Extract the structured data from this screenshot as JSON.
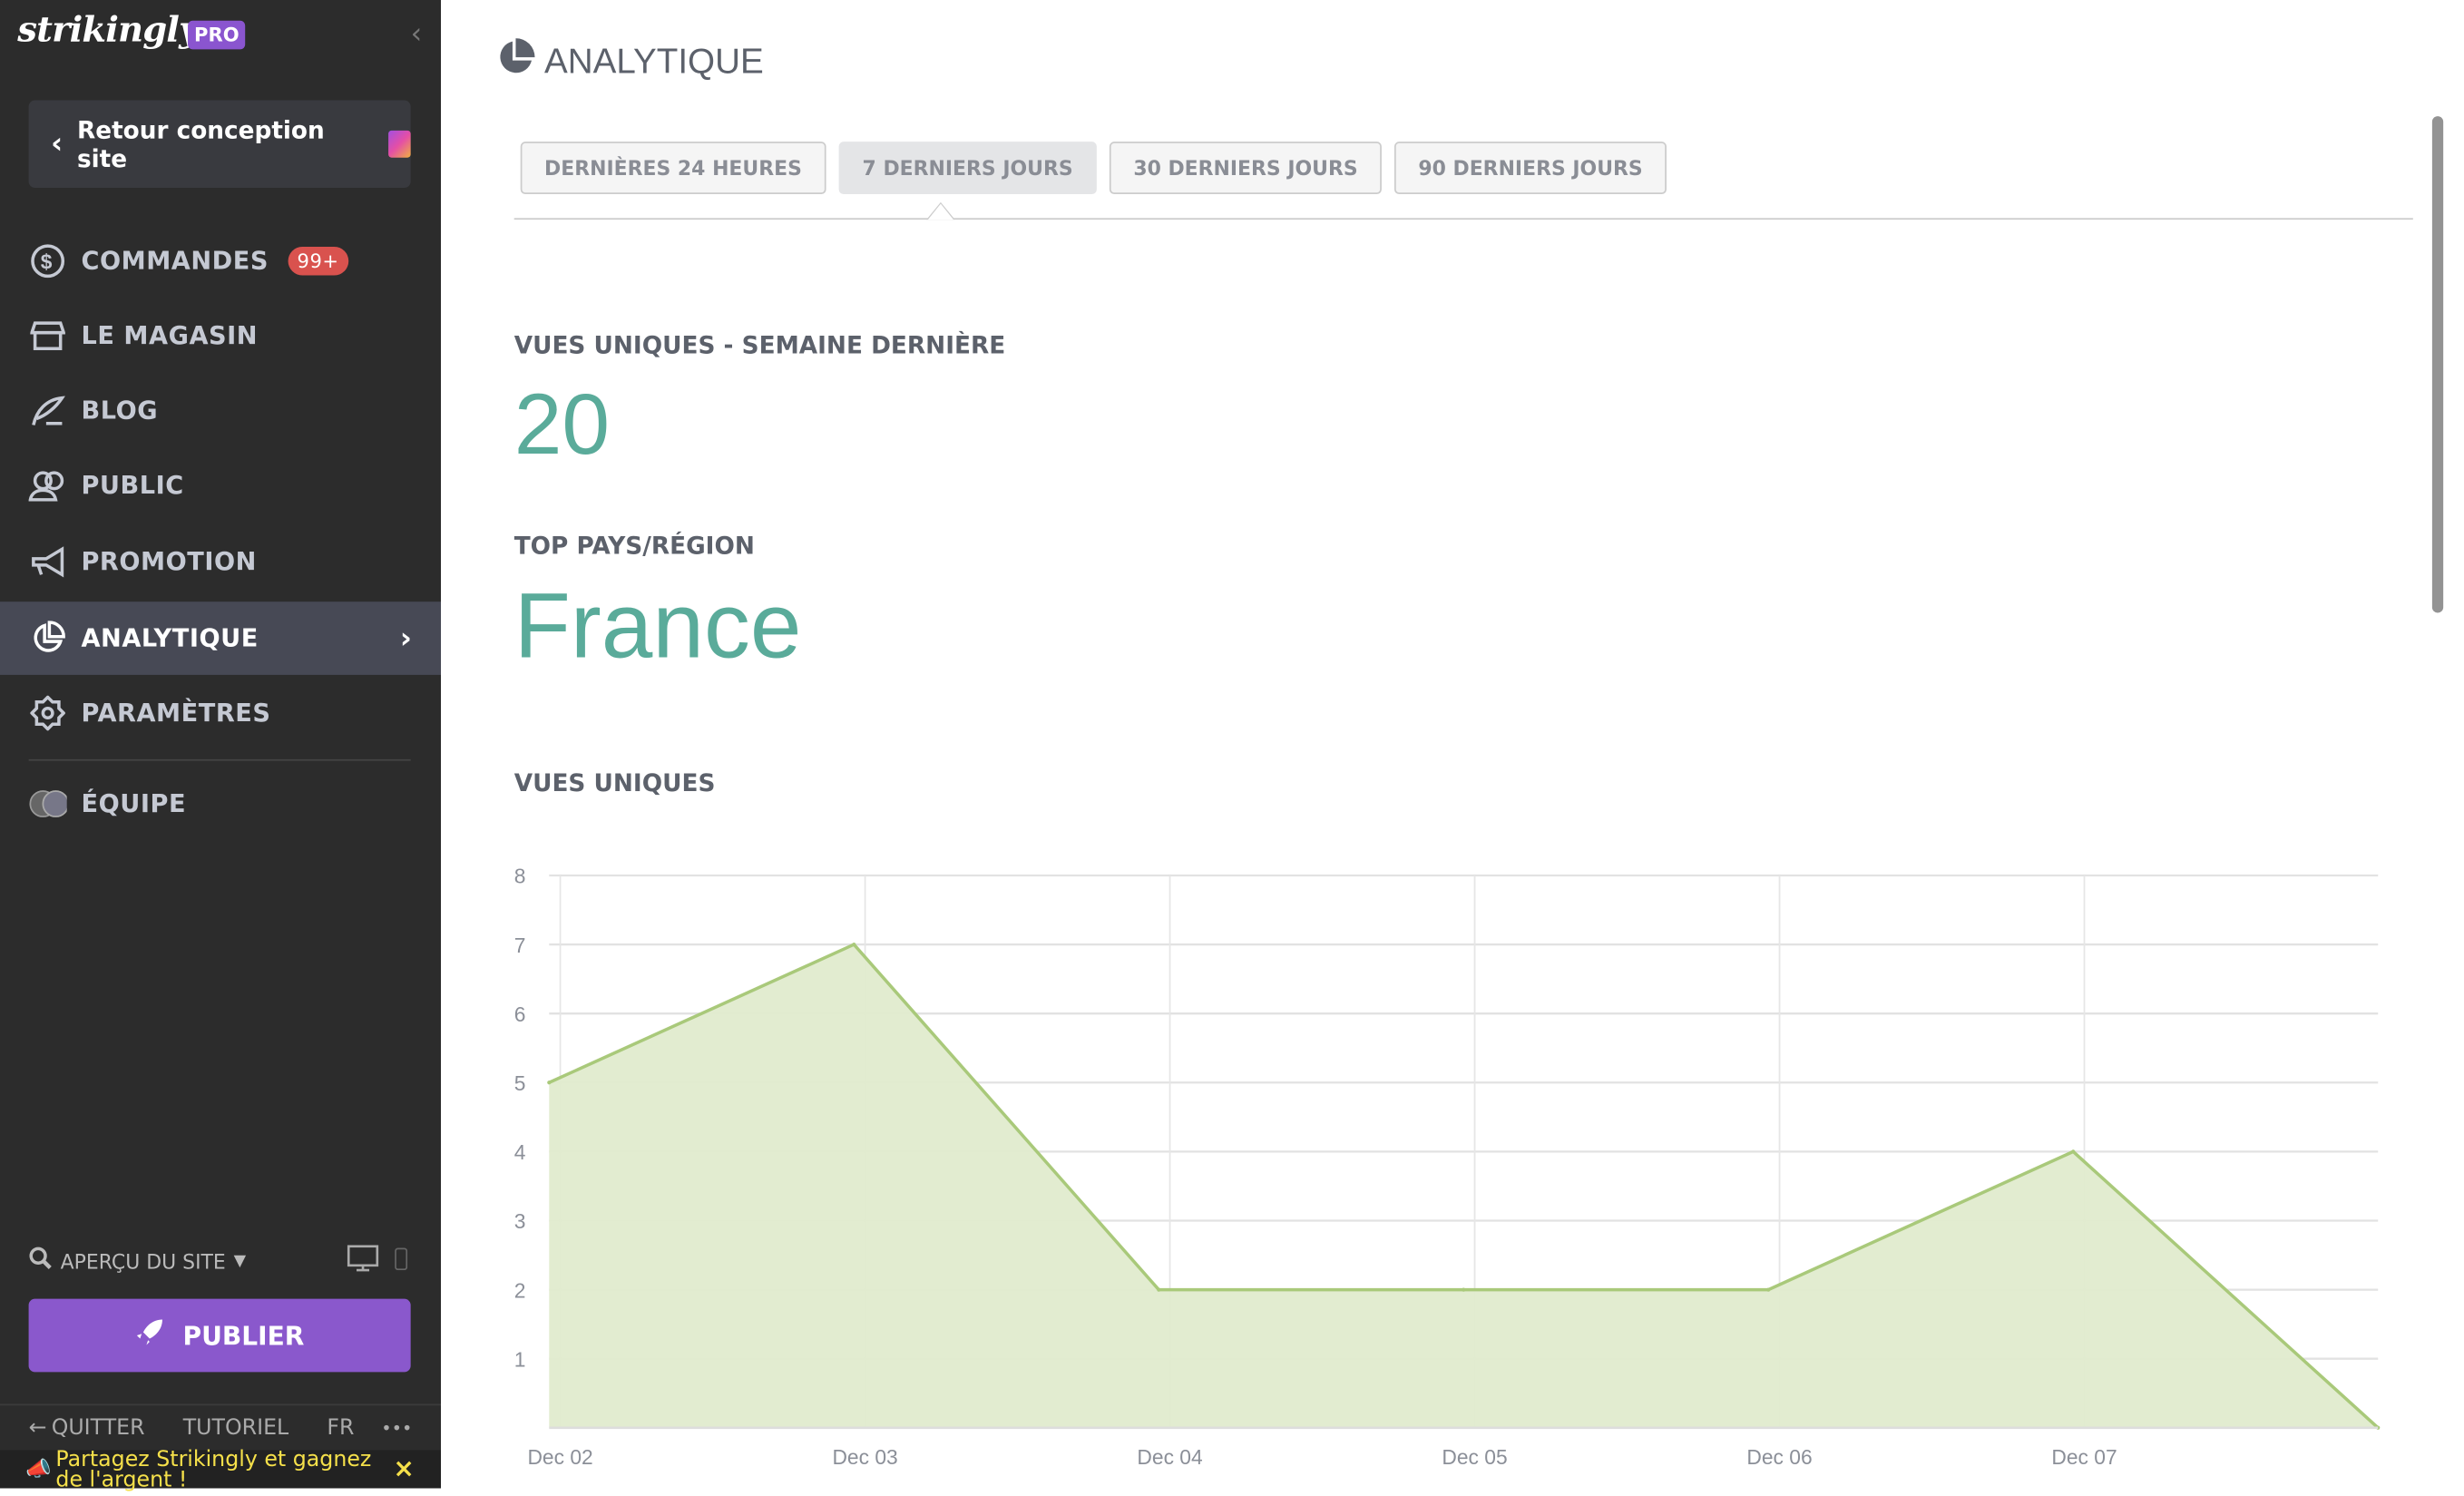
{
  "sidebar": {
    "logo": "strikingly",
    "plan_badge": "PRO",
    "back_label": "Retour conception site",
    "items": [
      {
        "label": "COMMANDES",
        "badge": "99+",
        "icon": "dollar-circle-icon"
      },
      {
        "label": "LE MAGASIN",
        "icon": "store-icon"
      },
      {
        "label": "BLOG",
        "icon": "quill-icon"
      },
      {
        "label": "PUBLIC",
        "icon": "users-icon"
      },
      {
        "label": "PROMOTION",
        "icon": "megaphone-icon"
      },
      {
        "label": "ANALYTIQUE",
        "icon": "pie-chart-icon",
        "active": true
      },
      {
        "label": "PARAMÈTRES",
        "icon": "gear-icon"
      },
      {
        "label": "ÉQUIPE",
        "icon": "avatars-icon"
      }
    ],
    "preview_label": "APERÇU DU SITE",
    "publish_label": "PUBLIER",
    "footer": {
      "quit": "QUITTER",
      "tutorial": "TUTORIEL",
      "lang": "FR",
      "more": "•••"
    },
    "promo": "Partagez Strikingly et gagnez de l'argent !",
    "promo_close": "×"
  },
  "main": {
    "title": "ANALYTIQUE",
    "tabs": [
      "DERNIÈRES 24 HEURES",
      "7 DERNIERS JOURS",
      "30 DERNIERS JOURS",
      "90 DERNIERS JOURS"
    ],
    "active_tab": 1,
    "unique_views_label": "VUES UNIQUES - SEMAINE DERNIÈRE",
    "unique_views_value": "20",
    "top_country_label": "TOP PAYS/RÉGION",
    "top_country_value": "France",
    "chart_title": "VUES UNIQUES"
  },
  "colors": {
    "accent": "#5aab9a",
    "publish": "#8a58cc",
    "badge": "#d9524e",
    "series_line": "#a9c97a",
    "series_fill": "#e0ebcd"
  },
  "chart_data": {
    "type": "area",
    "x_tick_labels": [
      "Dec 02",
      "Dec 03",
      "Dec 04",
      "Dec 05",
      "Dec 06",
      "Dec 07"
    ],
    "values": [
      5,
      7,
      2,
      2,
      2,
      4,
      0
    ],
    "y_ticks": [
      1,
      2,
      3,
      4,
      5,
      6,
      7,
      8
    ],
    "ylim": [
      0,
      8
    ],
    "grid": true
  }
}
